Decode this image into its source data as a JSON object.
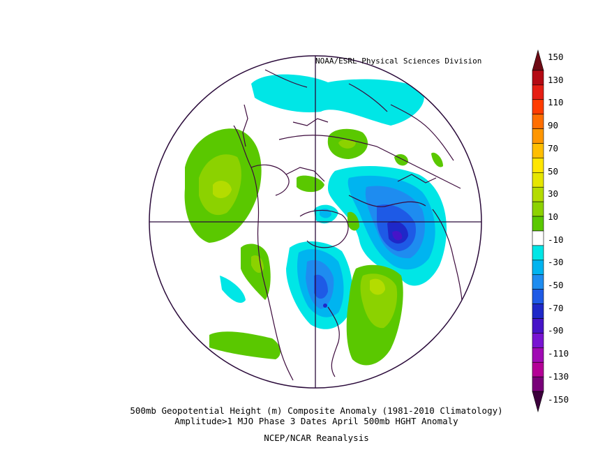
{
  "header": {
    "credit": "NOAA/ESRL Physical Sciences Division"
  },
  "captions": {
    "line1": "500mb Geopotential Height (m) Composite Anomaly (1981-2010 Climatology)",
    "line2": "Amplitude>1 MJO Phase 3 Dates April 500mb HGHT Anomaly",
    "line3": "NCEP/NCAR Reanalysis"
  },
  "colorbar": {
    "labels": [
      "150",
      "130",
      "110",
      "90",
      "70",
      "50",
      "30",
      "10",
      "-10",
      "-30",
      "-50",
      "-70",
      "-90",
      "-110",
      "-130",
      "-150"
    ],
    "colors": [
      "#6e0a14",
      "#b40a14",
      "#e61e14",
      "#ff3c00",
      "#ff6e00",
      "#ff9600",
      "#ffbe00",
      "#ffe600",
      "#e6e600",
      "#b4dc00",
      "#8cd200",
      "#5ac800",
      "#ffffff",
      "#00e6e6",
      "#00b4f0",
      "#1e8cf0",
      "#1e5ae6",
      "#1e28c8",
      "#4614c8",
      "#7814d2",
      "#a00ab4",
      "#b40096",
      "#780078",
      "#3c003c"
    ]
  },
  "map": {
    "projection": "North polar stereographic",
    "field": "500mb geopotential height anomaly (m)",
    "anomaly_centers": [
      {
        "region": "Northeast Pacific / Alaska",
        "sign": "positive",
        "approx_value": 40
      },
      {
        "region": "Hawaii / subtropical Pacific",
        "sign": "positive",
        "approx_value": 30
      },
      {
        "region": "Greenland / Canadian Arctic",
        "sign": "positive",
        "approx_value": 25
      },
      {
        "region": "Hudson Bay / central Canada",
        "sign": "negative",
        "approx_value": -60
      },
      {
        "region": "Western Atlantic",
        "sign": "positive",
        "approx_value": 40
      },
      {
        "region": "Scandinavia / Europe",
        "sign": "negative",
        "approx_value": -70
      },
      {
        "region": "Eurasian Arctic",
        "sign": "negative",
        "approx_value": -20
      },
      {
        "region": "Central Siberia",
        "sign": "positive",
        "approx_value": 20
      }
    ]
  }
}
